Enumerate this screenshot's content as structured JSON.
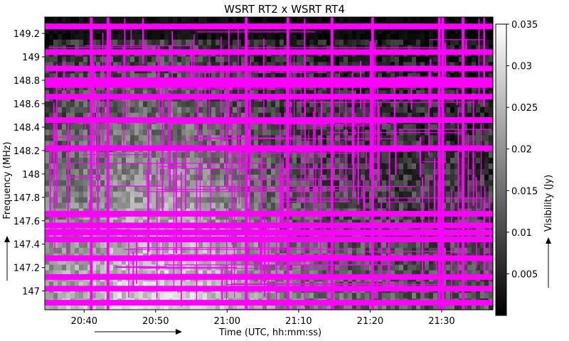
{
  "chart_data": {
    "type": "heatmap",
    "title": "WSRT RT2 x WSRT RT4",
    "xlabel": "Time (UTC, hh:mm:ss)",
    "ylabel": "Frequency (MHz)",
    "colorbar_label": "Visibility (Jy)",
    "x_unit": "time",
    "xlim": [
      "20:34:30",
      "21:37:10"
    ],
    "ylim": [
      146.84,
      149.34
    ],
    "clim": [
      0.0,
      0.035
    ],
    "x_ticks": [
      "20:40",
      "20:50",
      "21:00",
      "21:10",
      "21:20",
      "21:30"
    ],
    "y_ticks": [
      147,
      147.2,
      147.4,
      147.6,
      147.8,
      148,
      148.2,
      148.4,
      148.6,
      148.8,
      149,
      149.2
    ],
    "colorbar_ticks": [
      0.005,
      0.01,
      0.015,
      0.02,
      0.025,
      0.03,
      0.035
    ],
    "colormap": "gray",
    "flag_color": "#ff00ff",
    "flagged_frequencies_mhz": [
      149.26,
      149.04,
      148.9,
      148.8,
      148.76,
      148.66,
      148.46,
      148.22,
      147.66,
      147.56,
      147.5,
      147.44,
      147.28,
      147.12,
      147.02,
      146.9
    ],
    "flagged_times": [
      "20:41:00",
      "20:43:20",
      "21:02:40",
      "21:08:30",
      "21:14:40",
      "21:20:20",
      "21:29:40",
      "21:30:10",
      "21:33:00"
    ],
    "grid": false
  },
  "colors": {
    "flag": "#ff00ff",
    "background": "#ffffff",
    "text": "#000000"
  }
}
